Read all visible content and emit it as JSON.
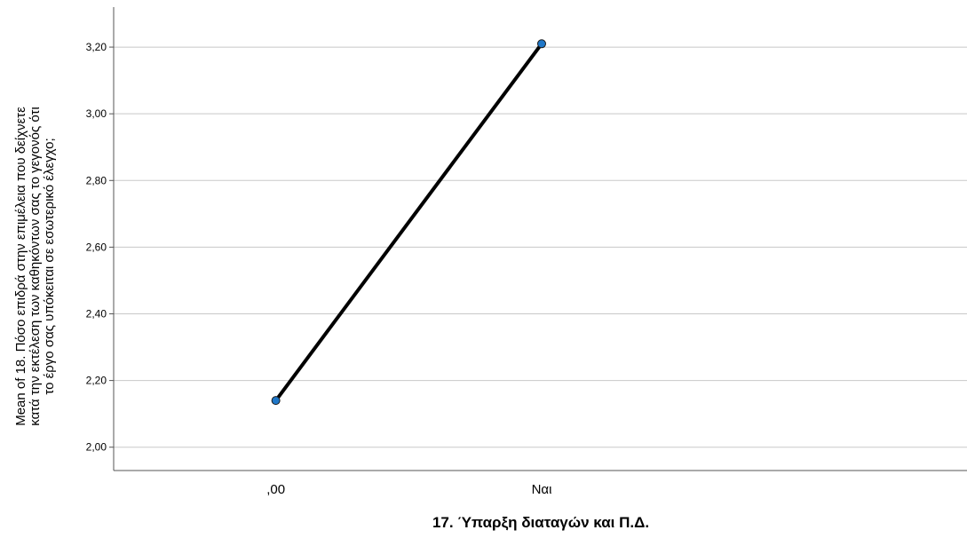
{
  "chart_data": {
    "type": "line",
    "categories": [
      ",00",
      "Ναι"
    ],
    "series": [
      {
        "values": [
          2.14,
          3.21
        ]
      }
    ],
    "xlabel": "17. Ύπαρξη διαταγών και Π.Δ.",
    "ylabel_lines": [
      "Mean of 18. Πόσο επιδρά στην επιμέλεια που δείχνετε",
      "κατά την εκτέλεση των καθηκόντων σας το γεγονός ότι",
      "το έργο σας υπόκειται σε εσωτερικό έλεγχο;"
    ],
    "yticks": [
      2.0,
      2.2,
      2.4,
      2.6,
      2.8,
      3.0,
      3.2
    ],
    "ytick_labels": [
      "2,00",
      "2,20",
      "2,40",
      "2,60",
      "2,80",
      "3,00",
      "3,20"
    ],
    "ylim": [
      1.93,
      3.32
    ],
    "grid": true,
    "legend": "none",
    "colors": {
      "line": "#000000",
      "marker_fill": "#1f77c8",
      "marker_stroke": "#1a1a1a",
      "grid": "#c8c8c8",
      "axis": "#555555",
      "text": "#000000"
    }
  }
}
